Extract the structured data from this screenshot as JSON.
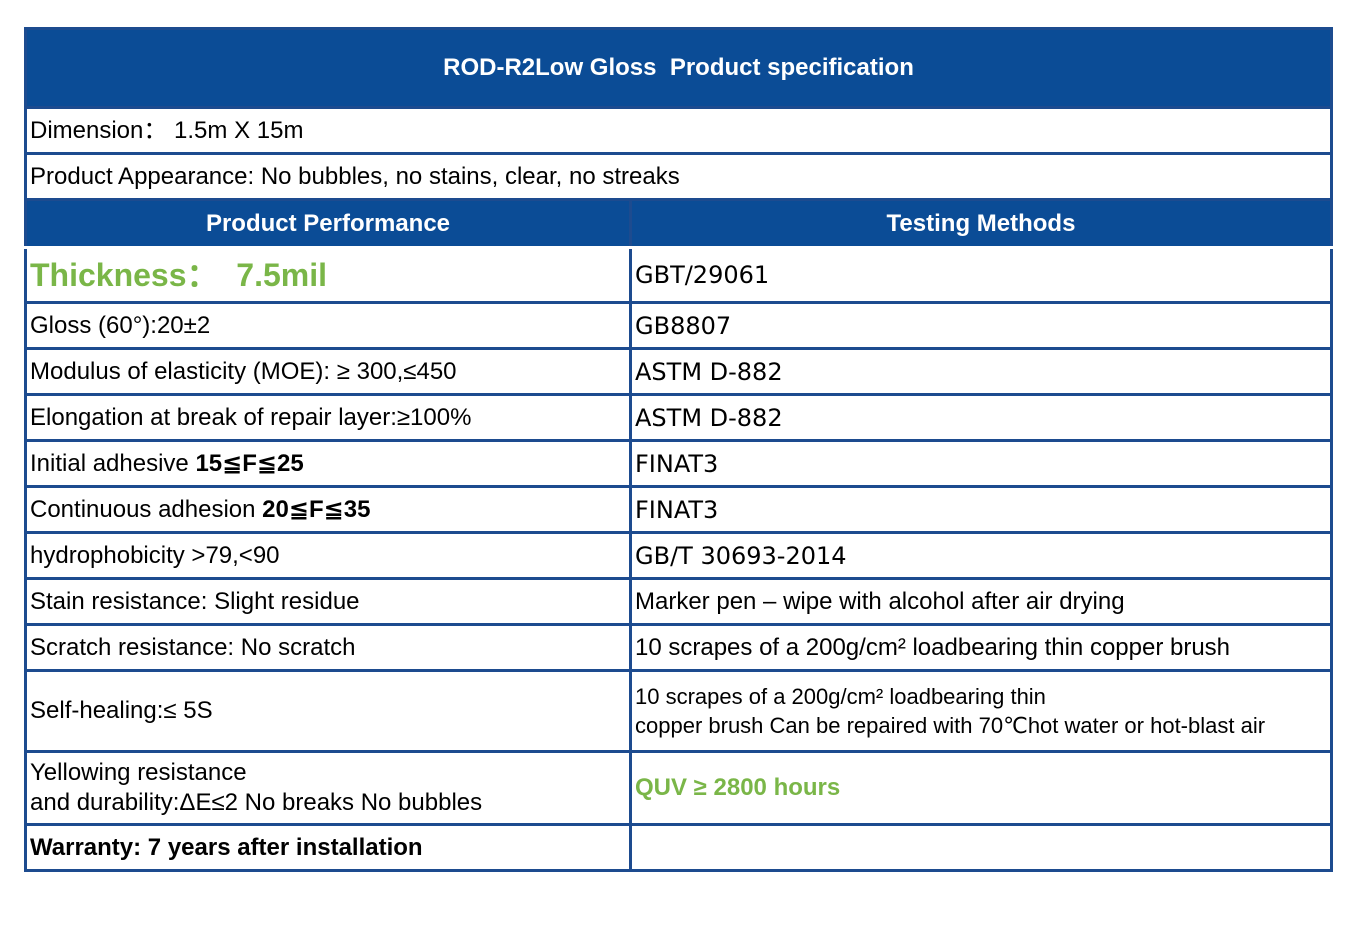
{
  "title": "ROD-R2Low Gloss  Product specification",
  "dimension": "Dimension：  1.5m X 15m",
  "appearance": "Product Appearance: No bubbles, no stains, clear, no streaks",
  "headers": {
    "performance": "Product Performance",
    "methods": "Testing Methods"
  },
  "rows": [
    {
      "perf": "Thickness：  7.5mil",
      "method": "GBT/29061"
    },
    {
      "perf": "Gloss (60°):20±2",
      "method": "GB8807"
    },
    {
      "perf": "Modulus of elasticity (MOE): ≥ 300,≤450",
      "method": "ASTM D-882"
    },
    {
      "perf": "Elongation at break of repair layer:≥100%",
      "method": "ASTM D-882"
    },
    {
      "perf_prefix": "Initial adhesive ",
      "perf_bold": "15≦F≦25",
      "method": "FINAT3"
    },
    {
      "perf_prefix": "Continuous adhesion ",
      "perf_bold": "20≦F≦35",
      "method": "FINAT3"
    },
    {
      "perf": "hydrophobicity >79,<90",
      "method": "GB/T 30693-2014"
    },
    {
      "perf": "Stain resistance: Slight residue",
      "method": "Marker pen – wipe with alcohol after air drying"
    },
    {
      "perf": "Scratch resistance: No scratch",
      "method": "10 scrapes of a 200g/cm² loadbearing thin copper brush"
    },
    {
      "perf": "Self-healing:≤ 5S",
      "method_line1": "10 scrapes of a 200g/cm² loadbearing thin",
      "method_line2": "copper brush Can be repaired with 70℃hot water or hot-blast air"
    },
    {
      "perf_line1": "Yellowing resistance",
      "perf_line2": "and durability:ΔE≤2 No breaks No bubbles",
      "method": "QUV ≥ 2800 hours"
    },
    {
      "perf": "Warranty: 7 years after installation",
      "method": ""
    }
  ]
}
